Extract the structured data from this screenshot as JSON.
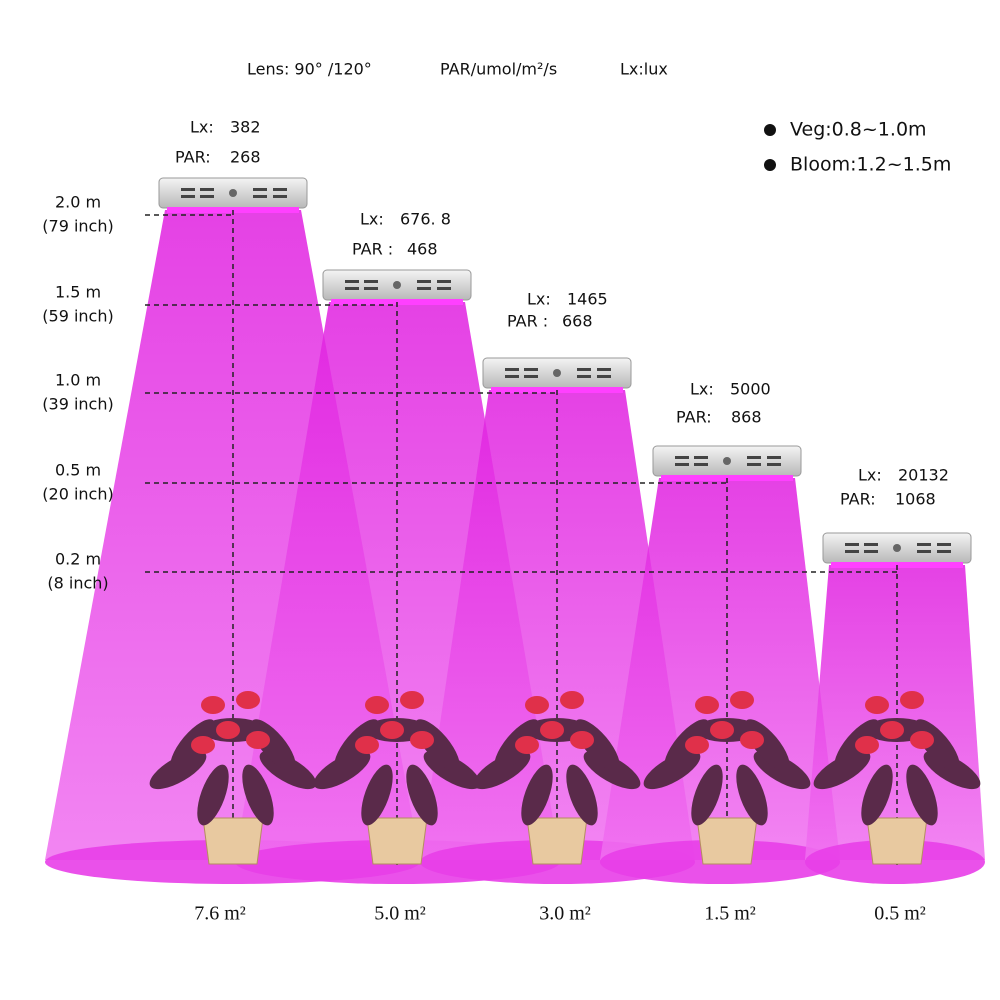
{
  "header": {
    "lens": "Lens: 90° /120°",
    "par": "PAR/umol/m²/s",
    "lux": "Lx:lux"
  },
  "legend": [
    "Veg:0.8~1.0m",
    "Bloom:1.2~1.5m"
  ],
  "heights": [
    {
      "meters": "2.0 m",
      "inches": "(79 inch)"
    },
    {
      "meters": "1.5 m",
      "inches": "(59 inch)"
    },
    {
      "meters": "1.0 m",
      "inches": "(39 inch)"
    },
    {
      "meters": "0.5 m",
      "inches": "(20 inch)"
    },
    {
      "meters": "0.2 m",
      "inches": "(8 inch)"
    }
  ],
  "lamps": [
    {
      "lx_label": "Lx:",
      "lx": "382",
      "par_label": "PAR:",
      "par": "268",
      "area": "7.6 m²"
    },
    {
      "lx_label": "Lx:",
      "lx": "676. 8",
      "par_label": "PAR :",
      "par": "468",
      "area": "5.0 m²"
    },
    {
      "lx_label": "Lx:",
      "lx": "1465",
      "par_label": "PAR :",
      "par": "668",
      "area": "3.0 m²"
    },
    {
      "lx_label": "Lx:",
      "lx": "5000",
      "par_label": "PAR:",
      "par": "868",
      "area": "1.5 m²"
    },
    {
      "lx_label": "Lx:",
      "lx": "20132",
      "par_label": "PAR:",
      "par": "1068",
      "area": "0.5 m²"
    }
  ]
}
